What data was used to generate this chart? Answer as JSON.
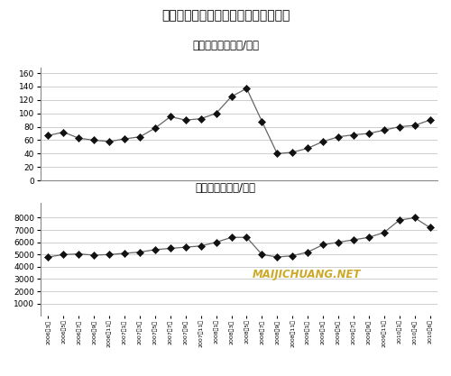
{
  "title": "国内成品油与国际原油价格同时间走势",
  "subtitle1": "国际原油价（美元/桶）",
  "subtitle2": "国内汽油价（元/吨）",
  "x_labels": [
    "2006年3月",
    "2006年5月",
    "2006年7月",
    "2006年9月",
    "2006年11月",
    "2007年1月",
    "2007年3月",
    "2007年5月",
    "2007年7月",
    "2007年9月",
    "2007年11月",
    "2008年1月",
    "2008年3月",
    "2008年5月",
    "2008年7月",
    "2008年9月",
    "2008年11月",
    "2009年1月",
    "2009年3月",
    "2009年5月",
    "2009年7月",
    "2009年9月",
    "2009年11月",
    "2010年1月",
    "2010年4月",
    "2010年6月"
  ],
  "oil_data": [
    67,
    72,
    63,
    60,
    58,
    62,
    65,
    78,
    95,
    90,
    92,
    100,
    125,
    137,
    88,
    40,
    42,
    48,
    58,
    65,
    68,
    70,
    75,
    80,
    82,
    90
  ],
  "gasoline_data": [
    4800,
    5000,
    5050,
    4950,
    5000,
    5100,
    5200,
    5400,
    5500,
    5600,
    5700,
    6000,
    6400,
    6400,
    5000,
    4800,
    4900,
    5200,
    5800,
    6000,
    6200,
    6400,
    6800,
    7800,
    8000,
    7200
  ],
  "oil_yticks": [
    0,
    20,
    40,
    60,
    80,
    100,
    120,
    140,
    160
  ],
  "gas_yticks": [
    1000,
    2000,
    3000,
    4000,
    5000,
    6000,
    7000,
    8000
  ],
  "oil_ylim": [
    0,
    168
  ],
  "gas_ylim": [
    0,
    9200
  ],
  "line_color": "#666666",
  "marker_color": "#111111",
  "bg_color": "#ffffff",
  "watermark": "MAIJICHUANG.NET",
  "watermark_color": "#c8a010"
}
